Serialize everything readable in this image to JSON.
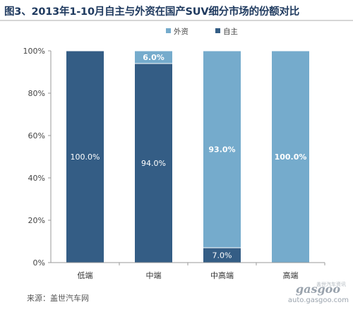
{
  "title": "图3、2013年1-10月自主与外资在国产SUV细分市场的份额对比",
  "source": "来源：盖世汽车网",
  "watermark": {
    "logo": "gasgoo",
    "cn": "盖世汽车资讯",
    "url": "auto.gasgoo.com"
  },
  "colors": {
    "domestic": "#345d85",
    "foreign": "#75abcc",
    "axis": "#999999",
    "grid": "#e6e6e6"
  },
  "chart_data": {
    "type": "bar",
    "stacked": true,
    "percent": true,
    "categories": [
      "低端",
      "中端",
      "中高端",
      "高端"
    ],
    "series": [
      {
        "name": "自主",
        "values": [
          100.0,
          94.0,
          7.0,
          0.0
        ],
        "labels": [
          "100.0%",
          "94.0%",
          "7.0%",
          ""
        ]
      },
      {
        "name": "外资",
        "values": [
          0.0,
          6.0,
          93.0,
          100.0
        ],
        "labels": [
          "",
          "6.0%",
          "93.0%",
          "100.0%"
        ]
      }
    ],
    "ylim": [
      0,
      100
    ],
    "yticks": [
      "0%",
      "20%",
      "40%",
      "60%",
      "80%",
      "100%"
    ],
    "legend": [
      "外资",
      "自主"
    ],
    "legend_position": "top-right"
  }
}
